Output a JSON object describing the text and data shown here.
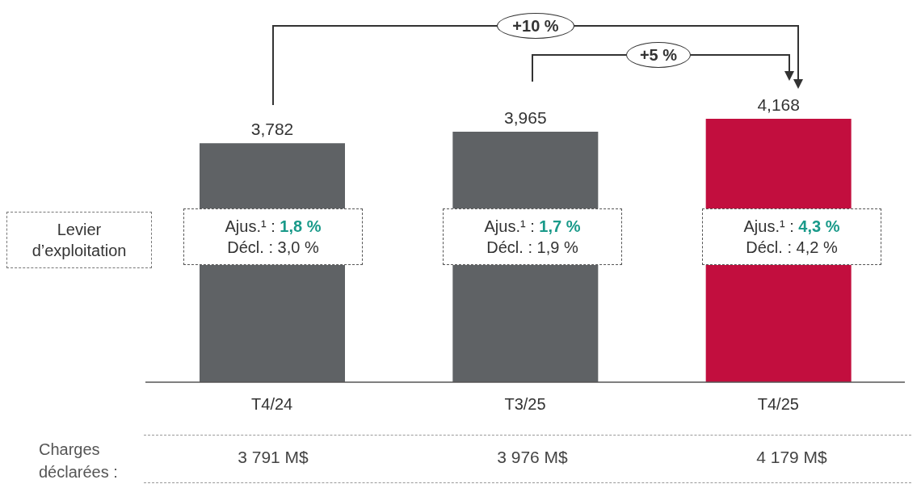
{
  "chart_data": {
    "type": "bar",
    "categories": [
      "T4/24",
      "T3/25",
      "T4/25"
    ],
    "values": [
      3782,
      3965,
      4168
    ],
    "value_labels": [
      "3,782",
      "3,965",
      "4,168"
    ],
    "colors": [
      "#5f6265",
      "#5f6265",
      "#c20e3e"
    ],
    "annotations": [
      "+10 %",
      "+5 %",
      "Levier d’exploitation",
      "Ajus.¹ : 1,8 %",
      "Ajus.¹ : 1,7 %",
      "Ajus.¹ : 4,3 %",
      "Décl. : 3,0 %",
      "Décl. : 1,9 %",
      "Décl. : 4,2 %",
      "Charges déclarées :",
      "3 791 M$",
      "3 976 M$",
      "4 179 M$"
    ]
  }
}
